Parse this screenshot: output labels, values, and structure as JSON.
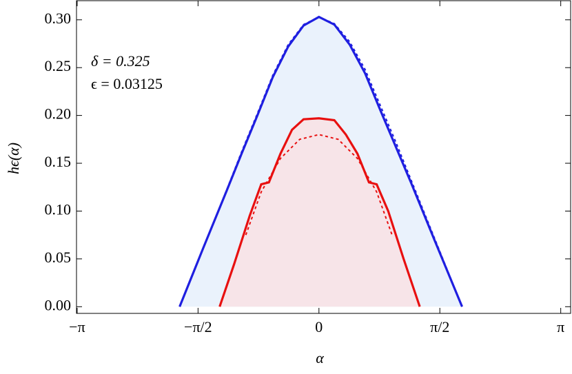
{
  "chart_data": {
    "type": "line",
    "xlabel": "α",
    "ylabel": "hϵ(α)",
    "annotations": [
      "δ = 0.325",
      "ϵ = 0.03125"
    ],
    "xlim": [
      -3.15,
      3.27
    ],
    "ylim": [
      -0.007,
      0.32
    ],
    "xticks": [
      {
        "value": -3.14159,
        "label": "−π"
      },
      {
        "value": -1.5708,
        "label": "−π/2"
      },
      0,
      {
        "value": 1.5708,
        "label": "π/2"
      },
      {
        "value": 3.14159,
        "label": "π"
      }
    ],
    "yticks": [
      {
        "value": 0,
        "label": "0.00"
      },
      {
        "value": 0.05,
        "label": "0.05"
      },
      {
        "value": 0.1,
        "label": "0.10"
      },
      {
        "value": 0.15,
        "label": "0.15"
      },
      {
        "value": 0.2,
        "label": "0.20"
      },
      {
        "value": 0.25,
        "label": "0.25"
      },
      {
        "value": 0.3,
        "label": "0.30"
      }
    ],
    "series": [
      {
        "color": "#1f1fe0",
        "dashed": false,
        "fill": "#eaf2fc",
        "x": [
          -1.81,
          -1.5,
          -1.2,
          -1.0,
          -0.8,
          -0.6,
          -0.4,
          -0.2,
          0,
          0.2,
          0.4,
          0.6,
          0.8,
          1.0,
          1.2,
          1.5,
          1.86
        ],
        "values": [
          0,
          0.062,
          0.121,
          0.161,
          0.2,
          0.24,
          0.272,
          0.294,
          0.303,
          0.295,
          0.274,
          0.244,
          0.205,
          0.167,
          0.129,
          0.07,
          0
        ]
      },
      {
        "color": "#1f1fe0",
        "dashed": true,
        "x": [
          -1.81,
          -1.5,
          -1.2,
          -1.0,
          -0.8,
          -0.6,
          -0.4,
          -0.2,
          0,
          0.2,
          0.4,
          0.6,
          0.8,
          1.0,
          1.2,
          1.5,
          1.86
        ],
        "values": [
          0,
          0.062,
          0.122,
          0.163,
          0.202,
          0.242,
          0.274,
          0.295,
          0.303,
          0.296,
          0.277,
          0.248,
          0.21,
          0.172,
          0.132,
          0.072,
          0
        ]
      },
      {
        "color": "#e81010",
        "dashed": false,
        "fill": "#f7e4e8",
        "x": [
          -1.29,
          -1.1,
          -1.0,
          -0.9,
          -0.75,
          -0.65,
          -0.5,
          -0.35,
          -0.2,
          0,
          0.2,
          0.35,
          0.5,
          0.65,
          0.75,
          0.9,
          1.0,
          1.1,
          1.31
        ],
        "values": [
          0,
          0.045,
          0.07,
          0.095,
          0.128,
          0.13,
          0.16,
          0.185,
          0.196,
          0.197,
          0.195,
          0.18,
          0.16,
          0.13,
          0.128,
          0.1,
          0.075,
          0.05,
          0
        ]
      },
      {
        "color": "#e81010",
        "dashed": true,
        "x": [
          -0.95,
          -0.75,
          -0.5,
          -0.25,
          0,
          0.25,
          0.5,
          0.75,
          0.95
        ],
        "values": [
          0.075,
          0.12,
          0.155,
          0.175,
          0.18,
          0.175,
          0.155,
          0.12,
          0.075
        ]
      }
    ]
  }
}
